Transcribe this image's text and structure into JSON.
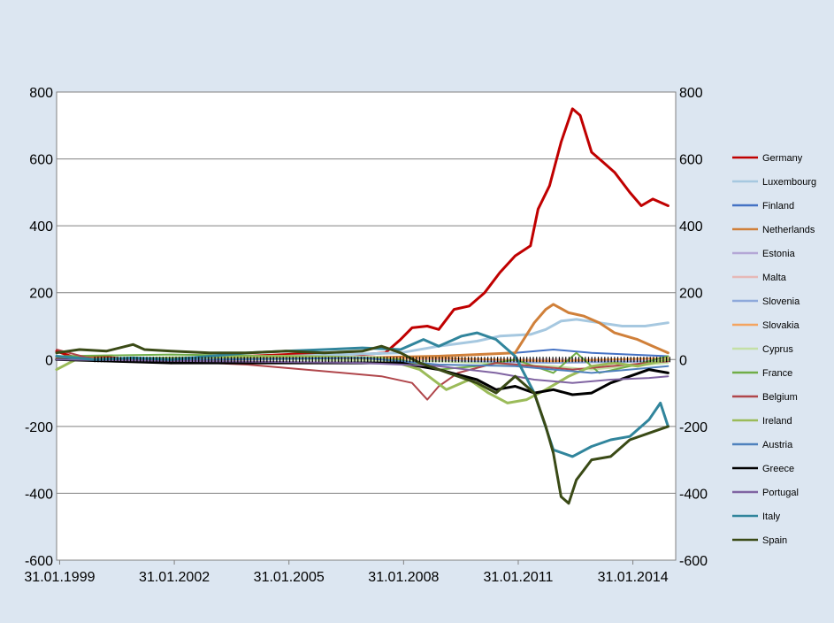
{
  "chart_data": {
    "type": "line",
    "title": "",
    "xlabel": "",
    "ylabel": "",
    "ylim": [
      -600,
      800
    ],
    "yticks": [
      800,
      600,
      400,
      200,
      0,
      -200,
      -400,
      -600
    ],
    "xlim": [
      1999.0,
      2015.2
    ],
    "xticks": [
      {
        "label": "31.01.1999",
        "x": 1999.08
      },
      {
        "label": "31.01.2002",
        "x": 2002.08
      },
      {
        "label": "31.01.2005",
        "x": 2005.08
      },
      {
        "label": "31.01.2008",
        "x": 2008.08
      },
      {
        "label": "31.01.2011",
        "x": 2011.08
      },
      {
        "label": "31.01.2014",
        "x": 2014.08
      }
    ],
    "grid": true,
    "legend_position": "right",
    "series": [
      {
        "name": "Germany",
        "color": "#c00000",
        "width": 3,
        "points": [
          [
            1999.0,
            25
          ],
          [
            1999.5,
            5
          ],
          [
            2000.0,
            10
          ],
          [
            2001.0,
            0
          ],
          [
            2002.0,
            -10
          ],
          [
            2003.0,
            5
          ],
          [
            2004.0,
            10
          ],
          [
            2005.0,
            15
          ],
          [
            2006.0,
            20
          ],
          [
            2007.0,
            15
          ],
          [
            2007.6,
            20
          ],
          [
            2008.0,
            60
          ],
          [
            2008.3,
            95
          ],
          [
            2008.7,
            100
          ],
          [
            2009.0,
            90
          ],
          [
            2009.4,
            150
          ],
          [
            2009.8,
            160
          ],
          [
            2010.2,
            200
          ],
          [
            2010.6,
            260
          ],
          [
            2011.0,
            310
          ],
          [
            2011.4,
            340
          ],
          [
            2011.6,
            450
          ],
          [
            2011.9,
            520
          ],
          [
            2012.2,
            650
          ],
          [
            2012.5,
            750
          ],
          [
            2012.7,
            730
          ],
          [
            2013.0,
            620
          ],
          [
            2013.3,
            590
          ],
          [
            2013.6,
            560
          ],
          [
            2014.0,
            500
          ],
          [
            2014.3,
            460
          ],
          [
            2014.6,
            480
          ],
          [
            2015.0,
            460
          ]
        ]
      },
      {
        "name": "Luxembourg",
        "color": "#a6c8e0",
        "width": 3,
        "points": [
          [
            1999.0,
            0
          ],
          [
            2002.0,
            5
          ],
          [
            2005.0,
            10
          ],
          [
            2008.0,
            20
          ],
          [
            2009.0,
            40
          ],
          [
            2010.0,
            55
          ],
          [
            2010.6,
            70
          ],
          [
            2011.4,
            75
          ],
          [
            2011.8,
            90
          ],
          [
            2012.2,
            115
          ],
          [
            2012.6,
            120
          ],
          [
            2013.2,
            110
          ],
          [
            2013.8,
            100
          ],
          [
            2014.4,
            100
          ],
          [
            2015.0,
            110
          ]
        ]
      },
      {
        "name": "Finland",
        "color": "#4472c4",
        "width": 2,
        "points": [
          [
            1999.0,
            0
          ],
          [
            2003.0,
            0
          ],
          [
            2007.0,
            0
          ],
          [
            2009.0,
            10
          ],
          [
            2011.0,
            20
          ],
          [
            2012.0,
            30
          ],
          [
            2013.0,
            20
          ],
          [
            2014.0,
            15
          ],
          [
            2015.0,
            10
          ]
        ]
      },
      {
        "name": "Netherlands",
        "color": "#d0803a",
        "width": 3,
        "points": [
          [
            1999.0,
            5
          ],
          [
            2003.0,
            0
          ],
          [
            2007.0,
            5
          ],
          [
            2009.0,
            10
          ],
          [
            2011.0,
            20
          ],
          [
            2011.5,
            110
          ],
          [
            2011.8,
            150
          ],
          [
            2012.0,
            165
          ],
          [
            2012.4,
            140
          ],
          [
            2012.8,
            130
          ],
          [
            2013.2,
            110
          ],
          [
            2013.6,
            80
          ],
          [
            2014.2,
            60
          ],
          [
            2014.6,
            40
          ],
          [
            2015.0,
            20
          ]
        ]
      },
      {
        "name": "Estonia",
        "color": "#b4a7d6",
        "width": 2,
        "points": [
          [
            1999.0,
            0
          ],
          [
            2005.0,
            0
          ],
          [
            2010.0,
            -5
          ],
          [
            2015.0,
            -5
          ]
        ]
      },
      {
        "name": "Malta",
        "color": "#e6b8b7",
        "width": 2,
        "points": [
          [
            1999.0,
            0
          ],
          [
            2005.0,
            0
          ],
          [
            2010.0,
            0
          ],
          [
            2015.0,
            0
          ]
        ]
      },
      {
        "name": "Slovenia",
        "color": "#8ea9db",
        "width": 2,
        "points": [
          [
            1999.0,
            0
          ],
          [
            2005.0,
            0
          ],
          [
            2009.0,
            -5
          ],
          [
            2012.0,
            -10
          ],
          [
            2015.0,
            -5
          ]
        ]
      },
      {
        "name": "Slovakia",
        "color": "#f4a460",
        "width": 2,
        "points": [
          [
            1999.0,
            0
          ],
          [
            2005.0,
            0
          ],
          [
            2009.0,
            5
          ],
          [
            2012.0,
            -5
          ],
          [
            2015.0,
            5
          ]
        ]
      },
      {
        "name": "Cyprus",
        "color": "#c4e0a6",
        "width": 2,
        "points": [
          [
            1999.0,
            0
          ],
          [
            2005.0,
            0
          ],
          [
            2009.0,
            -5
          ],
          [
            2012.0,
            -20
          ],
          [
            2013.0,
            -30
          ],
          [
            2015.0,
            -10
          ]
        ]
      },
      {
        "name": "France",
        "color": "#70ad47",
        "width": 2,
        "points": [
          [
            1999.0,
            10
          ],
          [
            2002.0,
            15
          ],
          [
            2005.0,
            10
          ],
          [
            2008.0,
            0
          ],
          [
            2009.0,
            -30
          ],
          [
            2010.0,
            -20
          ],
          [
            2011.0,
            0
          ],
          [
            2012.0,
            -40
          ],
          [
            2012.6,
            20
          ],
          [
            2013.2,
            -40
          ],
          [
            2014.0,
            -20
          ],
          [
            2015.0,
            10
          ]
        ]
      },
      {
        "name": "Belgium",
        "color": "#b0464b",
        "width": 2,
        "points": [
          [
            1999.0,
            30
          ],
          [
            2000.0,
            0
          ],
          [
            2002.0,
            -5
          ],
          [
            2004.0,
            -15
          ],
          [
            2006.0,
            -35
          ],
          [
            2007.5,
            -50
          ],
          [
            2008.3,
            -70
          ],
          [
            2008.7,
            -120
          ],
          [
            2009.0,
            -80
          ],
          [
            2009.5,
            -40
          ],
          [
            2010.5,
            -10
          ],
          [
            2011.5,
            -20
          ],
          [
            2012.5,
            -30
          ],
          [
            2013.5,
            -20
          ],
          [
            2014.5,
            -10
          ],
          [
            2015.0,
            -5
          ]
        ]
      },
      {
        "name": "Ireland",
        "color": "#9bbb59",
        "width": 3,
        "points": [
          [
            1999.0,
            -30
          ],
          [
            1999.5,
            0
          ],
          [
            2002.0,
            5
          ],
          [
            2005.0,
            10
          ],
          [
            2007.5,
            5
          ],
          [
            2008.5,
            -30
          ],
          [
            2009.2,
            -90
          ],
          [
            2009.8,
            -60
          ],
          [
            2010.3,
            -100
          ],
          [
            2010.8,
            -130
          ],
          [
            2011.3,
            -120
          ],
          [
            2011.8,
            -90
          ],
          [
            2012.4,
            -50
          ],
          [
            2013.0,
            -20
          ],
          [
            2013.6,
            -10
          ],
          [
            2014.2,
            -20
          ],
          [
            2014.8,
            -5
          ],
          [
            2015.0,
            0
          ]
        ]
      },
      {
        "name": "Austria",
        "color": "#4f81bd",
        "width": 2,
        "points": [
          [
            1999.0,
            0
          ],
          [
            2003.0,
            0
          ],
          [
            2007.0,
            5
          ],
          [
            2009.0,
            -15
          ],
          [
            2011.0,
            -20
          ],
          [
            2012.0,
            -30
          ],
          [
            2013.0,
            -40
          ],
          [
            2014.0,
            -30
          ],
          [
            2015.0,
            -20
          ]
        ]
      },
      {
        "name": "Greece",
        "color": "#000000",
        "width": 3,
        "points": [
          [
            1999.0,
            0
          ],
          [
            2002.0,
            -10
          ],
          [
            2005.0,
            -10
          ],
          [
            2008.0,
            -10
          ],
          [
            2009.0,
            -30
          ],
          [
            2010.0,
            -60
          ],
          [
            2010.5,
            -90
          ],
          [
            2011.0,
            -80
          ],
          [
            2011.5,
            -100
          ],
          [
            2012.0,
            -90
          ],
          [
            2012.5,
            -105
          ],
          [
            2013.0,
            -100
          ],
          [
            2013.5,
            -70
          ],
          [
            2014.0,
            -50
          ],
          [
            2014.5,
            -30
          ],
          [
            2015.0,
            -40
          ]
        ]
      },
      {
        "name": "Portugal",
        "color": "#8064a2",
        "width": 2,
        "points": [
          [
            1999.0,
            0
          ],
          [
            2003.0,
            -5
          ],
          [
            2007.0,
            -10
          ],
          [
            2009.0,
            -20
          ],
          [
            2010.5,
            -40
          ],
          [
            2011.5,
            -60
          ],
          [
            2012.5,
            -70
          ],
          [
            2013.5,
            -60
          ],
          [
            2014.5,
            -55
          ],
          [
            2015.0,
            -50
          ]
        ]
      },
      {
        "name": "Italy",
        "color": "#31859c",
        "width": 3,
        "points": [
          [
            1999.0,
            10
          ],
          [
            2000.0,
            0
          ],
          [
            2001.0,
            5
          ],
          [
            2002.0,
            0
          ],
          [
            2003.0,
            10
          ],
          [
            2004.0,
            20
          ],
          [
            2005.0,
            25
          ],
          [
            2006.0,
            30
          ],
          [
            2007.0,
            35
          ],
          [
            2008.0,
            30
          ],
          [
            2008.6,
            60
          ],
          [
            2009.0,
            40
          ],
          [
            2009.6,
            70
          ],
          [
            2010.0,
            80
          ],
          [
            2010.5,
            60
          ],
          [
            2011.0,
            10
          ],
          [
            2011.5,
            -100
          ],
          [
            2012.0,
            -270
          ],
          [
            2012.5,
            -290
          ],
          [
            2013.0,
            -260
          ],
          [
            2013.5,
            -240
          ],
          [
            2014.0,
            -230
          ],
          [
            2014.5,
            -180
          ],
          [
            2014.8,
            -130
          ],
          [
            2015.0,
            -200
          ]
        ]
      },
      {
        "name": "Spain",
        "color": "#3a4a16",
        "width": 3,
        "points": [
          [
            1999.0,
            20
          ],
          [
            1999.6,
            30
          ],
          [
            2000.3,
            25
          ],
          [
            2001.0,
            45
          ],
          [
            2001.3,
            30
          ],
          [
            2002.0,
            25
          ],
          [
            2003.0,
            20
          ],
          [
            2004.0,
            20
          ],
          [
            2005.0,
            25
          ],
          [
            2006.0,
            20
          ],
          [
            2007.0,
            25
          ],
          [
            2007.5,
            40
          ],
          [
            2008.0,
            20
          ],
          [
            2008.5,
            -10
          ],
          [
            2009.0,
            -30
          ],
          [
            2009.5,
            -50
          ],
          [
            2010.0,
            -70
          ],
          [
            2010.5,
            -100
          ],
          [
            2011.0,
            -50
          ],
          [
            2011.5,
            -100
          ],
          [
            2011.8,
            -200
          ],
          [
            2012.0,
            -280
          ],
          [
            2012.2,
            -410
          ],
          [
            2012.4,
            -430
          ],
          [
            2012.6,
            -360
          ],
          [
            2013.0,
            -300
          ],
          [
            2013.5,
            -290
          ],
          [
            2014.0,
            -240
          ],
          [
            2014.5,
            -220
          ],
          [
            2015.0,
            -200
          ]
        ]
      }
    ]
  }
}
